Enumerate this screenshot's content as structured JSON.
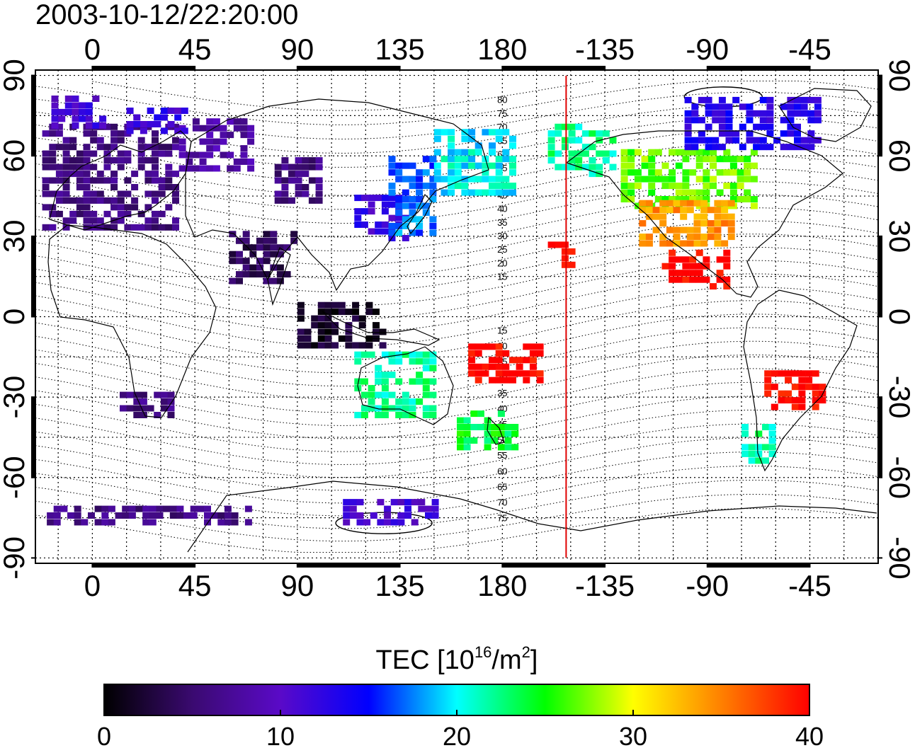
{
  "timestamp": "2003-10-12/22:20:00",
  "map": {
    "lon_ticks": [
      0,
      45,
      90,
      135,
      180,
      -135,
      -90,
      -45
    ],
    "lon_tick_labels": [
      "0",
      "45",
      "90",
      "135",
      "180",
      "-135",
      "-90",
      "-45"
    ],
    "lat_ticks": [
      90,
      60,
      30,
      0,
      -30,
      -60,
      -90
    ],
    "lat_tick_labels": [
      "90",
      "60",
      "30",
      "0",
      "-30",
      "-60",
      "-90"
    ],
    "lon_range": [
      -25,
      345
    ],
    "lat_range": [
      -92,
      92
    ],
    "terminator_longitude": -152,
    "terminator_color": "#e00000",
    "magnetic_lat_labels_north": [
      "80",
      "75",
      "70",
      "65",
      "60",
      "55",
      "50",
      "45",
      "40",
      "35",
      "30",
      "25",
      "20",
      "15"
    ],
    "magnetic_lat_labels_south": [
      "15",
      "20",
      "25",
      "30",
      "35",
      "40",
      "45",
      "50",
      "55",
      "60",
      "65",
      "70",
      "75"
    ]
  },
  "colorbar": {
    "title_main": "TEC  [10",
    "title_exp1": "16",
    "title_mid": "/m",
    "title_exp2": "2",
    "title_end": "]",
    "min": 0,
    "max": 40,
    "tick_values": [
      0,
      10,
      20,
      30,
      40
    ],
    "tick_labels": [
      "0",
      "10",
      "20",
      "30",
      "40"
    ],
    "colormap": [
      "#000000",
      "#3a0a70",
      "#5a0ac8",
      "#0000ff",
      "#00ffff",
      "#00ff00",
      "#ffff00",
      "#ff8000",
      "#ff0000"
    ]
  },
  "chart_data": {
    "type": "heatmap",
    "title": "2003-10-12/22:20:00",
    "xlabel": "",
    "ylabel": "",
    "value_label": "TEC [10^16/m^2]",
    "xlim": [
      -25,
      345
    ],
    "ylim": [
      -92,
      92
    ],
    "value_range": [
      0,
      40
    ],
    "regions": [
      {
        "lon": [
          -22,
          38
        ],
        "lat": [
          32,
          72
        ],
        "tec": 6
      },
      {
        "lon": [
          38,
          70
        ],
        "lat": [
          54,
          72
        ],
        "tec": 8
      },
      {
        "lon": [
          -18,
          5
        ],
        "lat": [
          70,
          82
        ],
        "tec": 11
      },
      {
        "lon": [
          15,
          42
        ],
        "lat": [
          68,
          78
        ],
        "tec": 12
      },
      {
        "lon": [
          80,
          100
        ],
        "lat": [
          42,
          58
        ],
        "tec": 6
      },
      {
        "lon": [
          60,
          90
        ],
        "lat": [
          12,
          32
        ],
        "tec": 4
      },
      {
        "lon": [
          90,
          128
        ],
        "lat": [
          -12,
          5
        ],
        "tec": 2
      },
      {
        "lon": [
          115,
          138
        ],
        "lat": [
          28,
          45
        ],
        "tec": 12
      },
      {
        "lon": [
          130,
          150
        ],
        "lat": [
          30,
          58
        ],
        "tec": 17
      },
      {
        "lon": [
          150,
          185
        ],
        "lat": [
          45,
          68
        ],
        "tec": 20
      },
      {
        "lon": [
          -160,
          -130
        ],
        "lat": [
          52,
          72
        ],
        "tec": 22
      },
      {
        "lon": [
          -128,
          -70
        ],
        "lat": [
          40,
          62
        ],
        "tec": 27
      },
      {
        "lon": [
          -120,
          -80
        ],
        "lat": [
          26,
          42
        ],
        "tec": 34
      },
      {
        "lon": [
          -110,
          -80
        ],
        "lat": [
          10,
          25
        ],
        "tec": 40
      },
      {
        "lon": [
          -100,
          -40
        ],
        "lat": [
          62,
          82
        ],
        "tec": 13
      },
      {
        "lon": [
          -160,
          -150
        ],
        "lat": [
          18,
          27
        ],
        "tec": 40
      },
      {
        "lon": [
          165,
          198
        ],
        "lat": [
          -25,
          -10
        ],
        "tec": 40
      },
      {
        "lon": [
          160,
          185
        ],
        "lat": [
          -50,
          -35
        ],
        "tec": 24
      },
      {
        "lon": [
          115,
          150
        ],
        "lat": [
          -38,
          -15
        ],
        "tec": 22
      },
      {
        "lon": [
          -65,
          -40
        ],
        "lat": [
          -35,
          -20
        ],
        "tec": 40
      },
      {
        "lon": [
          -75,
          -60
        ],
        "lat": [
          -55,
          -40
        ],
        "tec": 22
      },
      {
        "lon": [
          12,
          35
        ],
        "lat": [
          -38,
          -28
        ],
        "tec": 6
      },
      {
        "lon": [
          -20,
          70
        ],
        "lat": [
          -78,
          -72
        ],
        "tec": 6
      },
      {
        "lon": [
          110,
          150
        ],
        "lat": [
          -78,
          -70
        ],
        "tec": 11
      }
    ]
  }
}
